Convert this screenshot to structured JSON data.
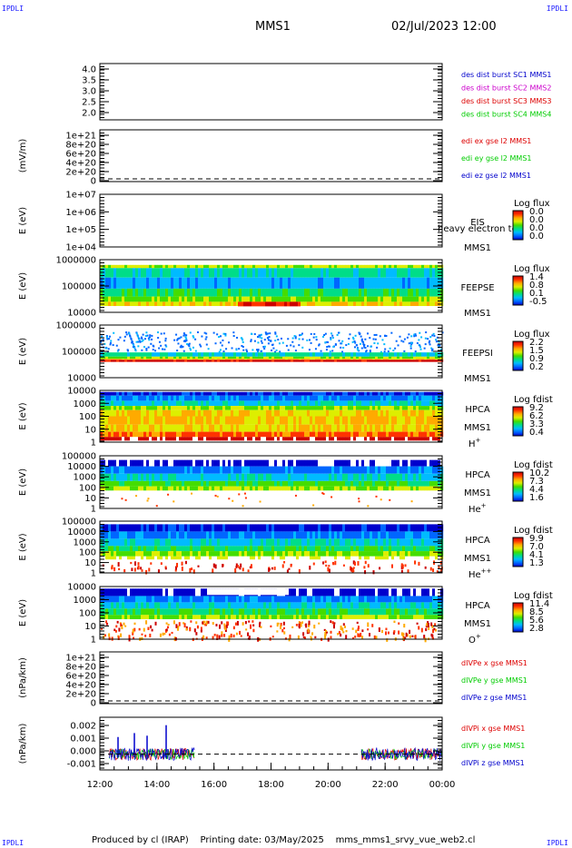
{
  "corners": {
    "top_left": "IPDLI",
    "top_right": "IPDLI",
    "bottom_left": "IPDLI",
    "bottom_right": "IPDLI"
  },
  "header": {
    "spacecraft": "MMS1",
    "datetime": "02/Jul/2023 12:00"
  },
  "footer": {
    "produced_by": "Produced by  cl (IRAP)",
    "print_date": "Printing date: 03/May/2025",
    "script_name": "mms_mms1_srvy_vue_web2.cl"
  },
  "colors": {
    "blue": "#0000cc",
    "magenta": "#cc00cc",
    "red": "#dd0000",
    "green": "#00cc00",
    "spectrum": [
      "#0000cc",
      "#0066ff",
      "#00bbff",
      "#00dd88",
      "#44dd00",
      "#ddee00",
      "#ffaa00",
      "#ff3300",
      "#cc0000"
    ]
  },
  "chart_data": {
    "type": "heatmap",
    "time_axis": {
      "range": [
        "12:00",
        "00:00"
      ],
      "tick_labels": [
        "12:00",
        "14:00",
        "16:00",
        "18:00",
        "20:00",
        "22:00",
        "00:00"
      ]
    },
    "panels": [
      {
        "id": "p1",
        "type": "line",
        "ylabel": "",
        "ylim": [
          1.75,
          4.25
        ],
        "tick_labels": [
          "4.0",
          "3.5",
          "3.0",
          "2.5",
          "2.0"
        ],
        "legend": [
          {
            "text": "des dist burst SC1 MMS1",
            "color": "#0000cc"
          },
          {
            "text": "des dist burst SC2 MMS2",
            "color": "#cc00cc"
          },
          {
            "text": "des dist burst SC3 MMS3",
            "color": "#dd0000"
          },
          {
            "text": "des dist burst SC4 MMS4",
            "color": "#00cc00"
          }
        ]
      },
      {
        "id": "p2",
        "type": "line",
        "ylabel": "(mV/m)",
        "tick_labels": [
          "1e+21",
          "8e+20",
          "6e+20",
          "4e+20",
          "2e+20",
          "0"
        ],
        "legend": [
          {
            "text": "edi ex gse l2 MMS1",
            "color": "#dd0000"
          },
          {
            "text": "edi ey gse l2 MMS1",
            "color": "#00cc00"
          },
          {
            "text": "edi ez gse l2 MMS1",
            "color": "#0000cc"
          }
        ]
      },
      {
        "id": "p3",
        "type": "heatmap",
        "ylabel": "E (eV)",
        "tick_labels": [
          "1e+07",
          "1e+06",
          "1e+05",
          "1e+04"
        ],
        "labels": [
          "EIS",
          "MMS1"
        ],
        "overlay": "heavy electron to",
        "colorbar": {
          "title": "Log flux",
          "ticks": [
            "0.0",
            "0.0",
            "0.0",
            "0.0"
          ]
        }
      },
      {
        "id": "p4",
        "type": "heatmap",
        "ylabel": "E (eV)",
        "tick_labels": [
          "1000000",
          "100000",
          "10000"
        ],
        "labels": [
          "FEEPSE",
          "MMS1"
        ],
        "colorbar": {
          "title": "Log flux",
          "ticks": [
            "1.4",
            "0.8",
            "0.1",
            "-0.5"
          ]
        }
      },
      {
        "id": "p5",
        "type": "heatmap",
        "ylabel": "E (eV)",
        "tick_labels": [
          "1000000",
          "100000",
          "10000"
        ],
        "labels": [
          "FEEPSI",
          "MMS1"
        ],
        "colorbar": {
          "title": "Log flux",
          "ticks": [
            "2.2",
            "1.5",
            "0.9",
            "0.2"
          ]
        }
      },
      {
        "id": "p6",
        "type": "heatmap",
        "ylabel": "E (eV)",
        "tick_labels": [
          "10000",
          "1000",
          "100",
          "10",
          "1"
        ],
        "labels": [
          "HPCA",
          "MMS1"
        ],
        "species": "H",
        "species_sup": "+",
        "colorbar": {
          "title": "Log fdist",
          "ticks": [
            "9.2",
            "6.2",
            "3.3",
            "0.4"
          ]
        }
      },
      {
        "id": "p7",
        "type": "heatmap",
        "ylabel": "E (eV)",
        "tick_labels": [
          "100000",
          "10000",
          "1000",
          "100",
          "10",
          "1"
        ],
        "labels": [
          "HPCA",
          "MMS1"
        ],
        "species": "He",
        "species_sup": "+",
        "colorbar": {
          "title": "Log fdist",
          "ticks": [
            "10.2",
            "7.3",
            "4.4",
            "1.6"
          ]
        }
      },
      {
        "id": "p8",
        "type": "heatmap",
        "ylabel": "E (eV)",
        "tick_labels": [
          "100000",
          "10000",
          "1000",
          "100",
          "10",
          "1"
        ],
        "labels": [
          "HPCA",
          "MMS1"
        ],
        "species": "He",
        "species_sup": "++",
        "colorbar": {
          "title": "Log fdist",
          "ticks": [
            "9.9",
            "7.0",
            "4.1",
            "1.3"
          ]
        }
      },
      {
        "id": "p9",
        "type": "heatmap",
        "ylabel": "E (eV)",
        "tick_labels": [
          "10000",
          "1000",
          "100",
          "10",
          "1"
        ],
        "labels": [
          "HPCA",
          "MMS1"
        ],
        "species": "O",
        "species_sup": "+",
        "colorbar": {
          "title": "Log fdist",
          "ticks": [
            "11.4",
            "8.5",
            "5.6",
            "2.8"
          ]
        }
      },
      {
        "id": "p10",
        "type": "line",
        "ylabel": "(nPa/km)",
        "tick_labels": [
          "1e+21",
          "8e+20",
          "6e+20",
          "4e+20",
          "2e+20",
          "0"
        ],
        "legend": [
          {
            "text": "dIVPe x gse MMS1",
            "color": "#dd0000"
          },
          {
            "text": "dIVPe y gse MMS1",
            "color": "#00cc00"
          },
          {
            "text": "dIVPe z gse MMS1",
            "color": "#0000cc"
          }
        ]
      },
      {
        "id": "p11",
        "type": "line",
        "ylabel": "(nPa/km)",
        "ylim": [
          -0.0012,
          0.0028
        ],
        "tick_labels": [
          "0.002",
          "0.001",
          "0.000",
          "-0.001"
        ],
        "data_intervals": [
          [
            "12:20",
            "15:20"
          ],
          [
            "21:10",
            "00:00"
          ]
        ],
        "legend": [
          {
            "text": "dIVPi x gse MMS1",
            "color": "#dd0000"
          },
          {
            "text": "dIVPi y gse MMS1",
            "color": "#00cc00"
          },
          {
            "text": "dIVPi z gse MMS1",
            "color": "#0000cc"
          }
        ]
      }
    ]
  }
}
